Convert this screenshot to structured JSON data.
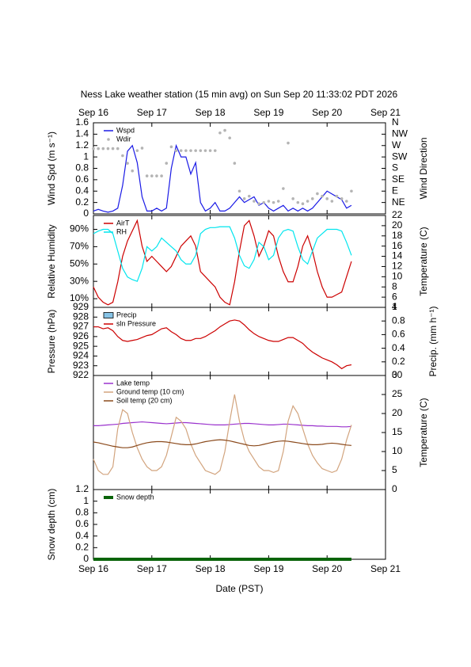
{
  "chart_data": [
    {
      "type": "line",
      "title": "Ness Lake weather station (15 min avg) on Sun Sep 20 11:33:02 PDT 2026",
      "ylabel": "Wind Spd (m s⁻¹)",
      "y2label": "Wind Direction",
      "xlim": [
        0,
        120
      ],
      "xticks": [
        {
          "value": 0,
          "label": "Sep 16"
        },
        {
          "value": 24,
          "label": "Sep 17"
        },
        {
          "value": 48,
          "label": "Sep 18"
        },
        {
          "value": 72,
          "label": "Sep 19"
        },
        {
          "value": 96,
          "label": "Sep 20"
        },
        {
          "value": 120,
          "label": "Sep 21"
        }
      ],
      "ylim": [
        0,
        1.6
      ],
      "yticks": [
        0,
        0.2,
        0.4,
        0.6,
        0.8,
        1,
        1.2,
        1.4,
        1.6
      ],
      "y2lim": [
        0,
        360
      ],
      "y2ticks": [
        {
          "value": 360,
          "label": "N"
        },
        {
          "value": 315,
          "label": "NW"
        },
        {
          "value": 270,
          "label": "W"
        },
        {
          "value": 225,
          "label": "SW"
        },
        {
          "value": 180,
          "label": "S"
        },
        {
          "value": 135,
          "label": "SE"
        },
        {
          "value": 90,
          "label": "E"
        },
        {
          "value": 45,
          "label": "NE"
        }
      ],
      "x": [
        0,
        2,
        4,
        6,
        8,
        10,
        12,
        14,
        16,
        18,
        20,
        22,
        24,
        26,
        28,
        30,
        32,
        34,
        36,
        38,
        40,
        42,
        44,
        46,
        48,
        50,
        52,
        54,
        56,
        58,
        60,
        62,
        64,
        66,
        68,
        70,
        72,
        74,
        76,
        78,
        80,
        82,
        84,
        86,
        88,
        90,
        92,
        94,
        96,
        98,
        100,
        102,
        104,
        106
      ],
      "series": [
        {
          "name": "Wspd",
          "color": "#1a1ae6",
          "values": [
            0.05,
            0.08,
            0.05,
            0.03,
            0.05,
            0.1,
            0.5,
            1.1,
            1.2,
            0.9,
            0.3,
            0.05,
            0.05,
            0.1,
            0.05,
            0.1,
            0.8,
            1.2,
            1.0,
            1.0,
            0.7,
            0.9,
            0.2,
            0.05,
            0.1,
            0.2,
            0.05,
            0.05,
            0.1,
            0.2,
            0.3,
            0.2,
            0.25,
            0.3,
            0.15,
            0.2,
            0.1,
            0.05,
            0.1,
            0.15,
            0.05,
            0.1,
            0.05,
            0.1,
            0.05,
            0.1,
            0.2,
            0.3,
            0.4,
            0.35,
            0.3,
            0.25,
            0.1,
            0.15
          ]
        },
        {
          "name": "Wdir",
          "type": "scatter",
          "axis": "y2",
          "color": "#b4b4b4",
          "values": [
            258,
            258,
            258,
            258,
            258,
            258,
            230,
            200,
            170,
            250,
            260,
            150,
            150,
            150,
            150,
            200,
            265,
            250,
            250,
            250,
            250,
            250,
            250,
            250,
            250,
            250,
            320,
            330,
            300,
            200,
            90,
            60,
            70,
            50,
            40,
            45,
            50,
            45,
            50,
            100,
            280,
            60,
            45,
            40,
            50,
            60,
            80,
            70,
            60,
            50,
            70,
            60,
            50,
            90
          ]
        }
      ]
    },
    {
      "type": "line",
      "ylabel": "Relative Humidity",
      "y2label": "Temperature (C)",
      "ylim": [
        0,
        106
      ],
      "yticks": [
        {
          "value": 10,
          "label": "10%"
        },
        {
          "value": 30,
          "label": "30%"
        },
        {
          "value": 50,
          "label": "50%"
        },
        {
          "value": 70,
          "label": "70%"
        },
        {
          "value": 90,
          "label": "90%"
        }
      ],
      "y2lim": [
        4,
        22
      ],
      "y2ticks": [
        4,
        6,
        8,
        10,
        12,
        14,
        16,
        18,
        20,
        22
      ],
      "x": [
        0,
        2,
        4,
        6,
        8,
        10,
        12,
        14,
        16,
        18,
        20,
        22,
        24,
        26,
        28,
        30,
        32,
        34,
        36,
        38,
        40,
        42,
        44,
        46,
        48,
        50,
        52,
        54,
        56,
        58,
        60,
        62,
        64,
        66,
        68,
        70,
        72,
        74,
        76,
        78,
        80,
        82,
        84,
        86,
        88,
        90,
        92,
        94,
        96,
        98,
        100,
        102,
        104,
        106
      ],
      "series": [
        {
          "name": "AirT",
          "axis": "y2",
          "color": "#cc0000",
          "values": [
            8,
            6,
            5,
            4.5,
            5,
            9,
            14,
            17,
            19,
            21,
            16,
            13,
            14,
            13,
            12,
            11,
            12,
            14,
            16,
            17,
            18,
            16,
            11,
            10,
            9,
            8,
            6,
            5,
            4.5,
            9,
            15,
            20,
            21,
            18,
            14,
            16,
            19,
            18,
            14,
            11,
            9,
            9,
            12,
            16,
            18,
            15,
            11,
            8,
            6,
            6,
            6.5,
            7,
            10,
            13
          ]
        },
        {
          "name": "RH",
          "color": "#00e5ee",
          "values": [
            85,
            88,
            90,
            90,
            85,
            65,
            45,
            35,
            32,
            30,
            45,
            70,
            65,
            70,
            80,
            75,
            70,
            65,
            55,
            50,
            50,
            60,
            85,
            90,
            92,
            92,
            93,
            93,
            93,
            80,
            60,
            48,
            45,
            55,
            75,
            70,
            55,
            60,
            80,
            88,
            90,
            88,
            70,
            55,
            50,
            65,
            80,
            85,
            90,
            90,
            90,
            88,
            75,
            60
          ]
        }
      ]
    },
    {
      "type": "line",
      "ylabel": "Pressure (hPa)",
      "y2label": "Precip. (mm h⁻¹)",
      "ylim": [
        922,
        929
      ],
      "yticks": [
        922,
        923,
        924,
        925,
        926,
        927,
        928,
        929
      ],
      "y2lim": [
        0,
        1
      ],
      "y2ticks": [
        0,
        0.2,
        0.4,
        0.6,
        0.8,
        1
      ],
      "x": [
        0,
        2,
        4,
        6,
        8,
        10,
        12,
        14,
        16,
        18,
        20,
        22,
        24,
        26,
        28,
        30,
        32,
        34,
        36,
        38,
        40,
        42,
        44,
        46,
        48,
        50,
        52,
        54,
        56,
        58,
        60,
        62,
        64,
        66,
        68,
        70,
        72,
        74,
        76,
        78,
        80,
        82,
        84,
        86,
        88,
        90,
        92,
        94,
        96,
        98,
        100,
        102,
        104,
        106
      ],
      "series": [
        {
          "name": "Precip",
          "type": "bar",
          "axis": "y2",
          "color": "#87c3e6",
          "values": [
            0,
            0,
            0,
            0,
            0,
            0,
            0,
            0,
            0,
            0,
            0,
            0,
            0,
            0,
            0,
            0,
            0,
            0,
            0,
            0,
            0,
            0,
            0,
            0,
            0,
            0,
            0,
            0,
            0,
            0,
            0,
            0,
            0,
            0,
            0,
            0,
            0,
            0,
            0,
            0,
            0,
            0,
            0,
            0,
            0,
            0,
            0,
            0,
            0,
            0,
            0,
            0,
            0,
            0
          ]
        },
        {
          "name": "sln Pressure",
          "color": "#cc0000",
          "values": [
            927,
            927,
            926.8,
            926.9,
            926.6,
            926,
            925.6,
            925.5,
            925.6,
            925.7,
            925.9,
            926.1,
            926.2,
            926.5,
            926.8,
            926.9,
            926.5,
            926.2,
            925.8,
            925.6,
            925.6,
            925.8,
            925.8,
            926,
            926.3,
            926.6,
            927,
            927.3,
            927.6,
            927.7,
            927.6,
            927.2,
            926.7,
            926.3,
            926,
            925.8,
            925.6,
            925.5,
            925.5,
            925.7,
            925.9,
            925.9,
            925.6,
            925.3,
            924.8,
            924.4,
            924.1,
            923.8,
            923.6,
            923.4,
            923.1,
            922.7,
            923,
            923.1
          ]
        }
      ]
    },
    {
      "type": "line",
      "y2label": "Temperature (C)",
      "y2lim": [
        0,
        30
      ],
      "y2ticks": [
        0,
        5,
        10,
        15,
        20,
        25,
        30
      ],
      "x": [
        0,
        2,
        4,
        6,
        8,
        10,
        12,
        14,
        16,
        18,
        20,
        22,
        24,
        26,
        28,
        30,
        32,
        34,
        36,
        38,
        40,
        42,
        44,
        46,
        48,
        50,
        52,
        54,
        56,
        58,
        60,
        62,
        64,
        66,
        68,
        70,
        72,
        74,
        76,
        78,
        80,
        82,
        84,
        86,
        88,
        90,
        92,
        94,
        96,
        98,
        100,
        102,
        104,
        106
      ],
      "series": [
        {
          "name": "Lake temp",
          "axis": "y2",
          "color": "#9a32cd",
          "values": [
            16.8,
            16.8,
            16.9,
            17,
            17.1,
            17.2,
            17.4,
            17.5,
            17.6,
            17.7,
            17.8,
            17.7,
            17.6,
            17.5,
            17.4,
            17.3,
            17.4,
            17.5,
            17.6,
            17.6,
            17.5,
            17.4,
            17.3,
            17.2,
            17.1,
            17,
            17,
            17,
            17.1,
            17.2,
            17.3,
            17.4,
            17.4,
            17.3,
            17.2,
            17.1,
            17,
            17,
            17.1,
            17.2,
            17.2,
            17.1,
            17,
            16.9,
            16.8,
            16.8,
            16.7,
            16.7,
            16.6,
            16.6,
            16.6,
            16.5,
            16.5,
            16.6
          ]
        },
        {
          "name": "Ground temp (10 cm)",
          "axis": "y2",
          "color": "#d2a47e",
          "values": [
            8,
            5,
            4,
            4,
            6,
            16,
            21,
            20,
            15,
            11,
            8,
            6,
            5,
            5,
            6,
            9,
            14,
            19,
            18,
            16,
            12,
            9,
            7,
            5,
            4.5,
            4,
            5,
            10,
            18,
            25,
            18,
            13,
            10,
            8,
            6,
            5,
            5,
            4.5,
            5,
            10,
            18,
            22,
            20,
            16,
            12,
            9,
            7,
            5.5,
            5,
            4.5,
            5,
            8,
            13,
            17
          ]
        },
        {
          "name": "Soil temp (20 cm)",
          "axis": "y2",
          "color": "#8b4a1c",
          "values": [
            12.5,
            12.3,
            12,
            11.7,
            11.4,
            11.2,
            11,
            11,
            11.2,
            11.6,
            12,
            12.3,
            12.5,
            12.6,
            12.6,
            12.5,
            12.3,
            12.1,
            11.9,
            11.8,
            11.8,
            12,
            12.3,
            12.6,
            12.8,
            13,
            13.1,
            13,
            12.8,
            12.5,
            12.2,
            11.9,
            11.6,
            11.5,
            11.6,
            11.9,
            12.2,
            12.5,
            12.7,
            12.8,
            12.7,
            12.5,
            12.3,
            12.1,
            11.9,
            11.8,
            11.8,
            11.9,
            12.1,
            12.2,
            12.1,
            11.9,
            11.7,
            11.6
          ]
        }
      ]
    },
    {
      "type": "line",
      "ylabel": "Snow depth (cm)",
      "xlabel": "Date (PST)",
      "xlim": [
        0,
        120
      ],
      "xticks": [
        {
          "value": 0,
          "label": "Sep 16"
        },
        {
          "value": 24,
          "label": "Sep 17"
        },
        {
          "value": 48,
          "label": "Sep 18"
        },
        {
          "value": 72,
          "label": "Sep 19"
        },
        {
          "value": 96,
          "label": "Sep 20"
        },
        {
          "value": 120,
          "label": "Sep 21"
        }
      ],
      "ylim": [
        0,
        1.2
      ],
      "yticks": [
        0,
        0.2,
        0.4,
        0.6,
        0.8,
        1,
        1.2
      ],
      "x": [
        0,
        2,
        4,
        6,
        8,
        10,
        12,
        14,
        16,
        18,
        20,
        22,
        24,
        26,
        28,
        30,
        32,
        34,
        36,
        38,
        40,
        42,
        44,
        46,
        48,
        50,
        52,
        54,
        56,
        58,
        60,
        62,
        64,
        66,
        68,
        70,
        72,
        74,
        76,
        78,
        80,
        82,
        84,
        86,
        88,
        90,
        92,
        94,
        96,
        98,
        100,
        102,
        104,
        106
      ],
      "series": [
        {
          "name": "Snow depth",
          "color": "#0a640a",
          "width": 4,
          "values": [
            0,
            0,
            0,
            0,
            0,
            0,
            0,
            0,
            0,
            0,
            0,
            0,
            0,
            0,
            0,
            0,
            0,
            0,
            0,
            0,
            0,
            0,
            0,
            0,
            0,
            0,
            0,
            0,
            0,
            0,
            0,
            0,
            0,
            0,
            0,
            0,
            0,
            0,
            0,
            0,
            0,
            0,
            0,
            0,
            0,
            0,
            0,
            0,
            0,
            0,
            0,
            0,
            0,
            0
          ]
        }
      ]
    }
  ]
}
